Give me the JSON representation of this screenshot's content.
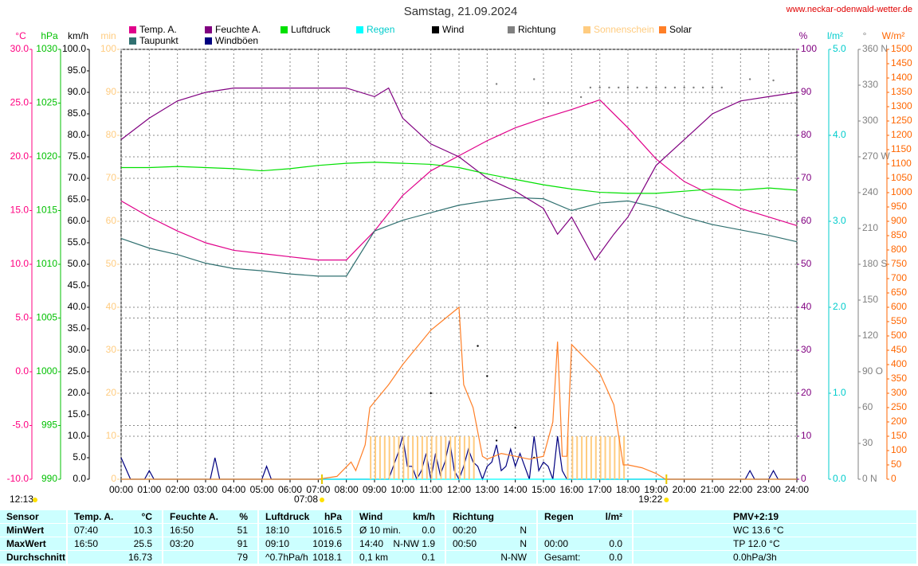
{
  "header": {
    "title": "Samstag, 21.09.2024",
    "url": "www.neckar-odenwald-wetter.de"
  },
  "chart_data": {
    "type": "line",
    "xlim": [
      "00:00",
      "24:00"
    ],
    "xticks": [
      "00:00",
      "01:00",
      "02:00",
      "03:00",
      "04:00",
      "05:00",
      "06:00",
      "07:00",
      "08:00",
      "09:00",
      "10:00",
      "11:00",
      "12:00",
      "13:00",
      "14:00",
      "15:00",
      "16:00",
      "17:00",
      "18:00",
      "19:00",
      "20:00",
      "21:00",
      "22:00",
      "23:00",
      "24:00"
    ],
    "x": [
      "00:00",
      "01:00",
      "02:00",
      "03:00",
      "04:00",
      "05:00",
      "06:00",
      "07:00",
      "08:00",
      "09:00",
      "10:00",
      "11:00",
      "12:00",
      "13:00",
      "14:00",
      "15:00",
      "16:00",
      "17:00",
      "18:00",
      "19:00",
      "20:00",
      "21:00",
      "22:00",
      "23:00",
      "24:00"
    ],
    "xgrid": true,
    "grid": [
      "y1",
      "y5"
    ],
    "axes": {
      "y1": {
        "label": "°C",
        "color": "#ff0080",
        "ylim": [
          -10,
          30
        ],
        "yticks": [
          {
            "value": -10,
            "label": "-10.0"
          },
          {
            "value": -5,
            "label": "-5.0"
          },
          {
            "value": 0,
            "label": "0.0"
          },
          {
            "value": 5,
            "label": "5.0"
          },
          {
            "value": 10,
            "label": "10.0"
          },
          {
            "value": 15,
            "label": "15.0"
          },
          {
            "value": 20,
            "label": "20.0"
          },
          {
            "value": 25,
            "label": "25.0"
          },
          {
            "value": 30,
            "label": "30.0"
          }
        ]
      },
      "y2": {
        "label": "hPa",
        "color": "#00c000",
        "ylim": [
          990,
          1030
        ],
        "yticks": [
          990,
          995,
          1000,
          1005,
          1010,
          1015,
          1020,
          1025,
          1030
        ]
      },
      "y3": {
        "label": "km/h",
        "color": "#000000",
        "ylim": [
          0,
          100
        ],
        "yticks": [
          {
            "value": 0,
            "label": "0.0"
          },
          {
            "value": 5,
            "label": "5.0"
          },
          {
            "value": 10,
            "label": "10.0"
          },
          {
            "value": 15,
            "label": "15.0"
          },
          {
            "value": 20,
            "label": "20.0"
          },
          {
            "value": 25,
            "label": "25.0"
          },
          {
            "value": 30,
            "label": "30.0"
          },
          {
            "value": 35,
            "label": "35.0"
          },
          {
            "value": 40,
            "label": "40.0"
          },
          {
            "value": 45,
            "label": "45.0"
          },
          {
            "value": 50,
            "label": "50.0"
          },
          {
            "value": 55,
            "label": "55.0"
          },
          {
            "value": 60,
            "label": "60.0"
          },
          {
            "value": 65,
            "label": "65.0"
          },
          {
            "value": 70,
            "label": "70.0"
          },
          {
            "value": 75,
            "label": "75.0"
          },
          {
            "value": 80,
            "label": "80.0"
          },
          {
            "value": 85,
            "label": "85.0"
          },
          {
            "value": 90,
            "label": "90.0"
          },
          {
            "value": 95,
            "label": "95.0"
          },
          {
            "value": 100,
            "label": "100.0"
          }
        ]
      },
      "y4": {
        "label": "min",
        "color": "#ffcc80",
        "ylim": [
          0,
          100
        ],
        "yticks": [
          0,
          10,
          20,
          30,
          40,
          50,
          60,
          70,
          80,
          90,
          100
        ]
      },
      "y5": {
        "label": "%",
        "color": "#800080",
        "ylim": [
          0,
          100
        ],
        "yticks": [
          0,
          10,
          20,
          30,
          40,
          50,
          60,
          70,
          80,
          90,
          100
        ]
      },
      "y6": {
        "label": "l/m²",
        "color": "#00cccc",
        "ylim": [
          0,
          5
        ],
        "yticks": [
          {
            "value": 0,
            "label": "0.0"
          },
          {
            "value": 1,
            "label": "1.0"
          },
          {
            "value": 2,
            "label": "2.0"
          },
          {
            "value": 3,
            "label": "3.0"
          },
          {
            "value": 4,
            "label": "4.0"
          },
          {
            "value": 5,
            "label": "5.0"
          }
        ]
      },
      "y7": {
        "label": "°",
        "color": "#808080",
        "ylim": [
          0,
          360
        ],
        "yticks": [
          {
            "value": 0,
            "label": "0 N"
          },
          30,
          60,
          {
            "value": 90,
            "label": "90 O"
          },
          120,
          150,
          {
            "value": 180,
            "label": "180 S"
          },
          210,
          240,
          {
            "value": 270,
            "label": "270 W"
          },
          300,
          330,
          {
            "value": 360,
            "label": "360 N"
          }
        ]
      },
      "y8": {
        "label": "W/m²",
        "color": "#ff6600",
        "ylim": [
          0,
          1500
        ],
        "yticks": [
          0,
          50,
          100,
          150,
          200,
          250,
          300,
          350,
          400,
          450,
          500,
          550,
          600,
          650,
          700,
          750,
          800,
          850,
          900,
          950,
          1000,
          1050,
          1100,
          1150,
          1200,
          1250,
          1300,
          1350,
          1400,
          1450,
          1500
        ]
      }
    },
    "series": [
      {
        "name": "Temp. A.",
        "color": "#e0008a",
        "axis": "y1",
        "style": "line",
        "values": [
          15.9,
          14.4,
          13.1,
          12.0,
          11.3,
          11.0,
          10.7,
          10.4,
          10.4,
          13.1,
          16.4,
          18.7,
          20.1,
          21.5,
          22.7,
          23.6,
          24.4,
          25.3,
          22.7,
          19.8,
          17.7,
          16.4,
          15.2,
          14.4,
          13.6
        ]
      },
      {
        "name": "Taupunkt",
        "color": "#307070",
        "axis": "y1",
        "style": "line",
        "values": [
          12.4,
          11.5,
          10.9,
          10.1,
          9.6,
          9.4,
          9.1,
          8.9,
          8.9,
          13.1,
          14.1,
          14.8,
          15.5,
          15.9,
          16.2,
          16.1,
          15.0,
          15.7,
          15.9,
          15.3,
          14.4,
          13.7,
          13.2,
          12.7,
          12.1
        ]
      },
      {
        "name": "Feuchte A.",
        "color": "#800080",
        "axis": "y5",
        "style": "line",
        "x": [
          "00:00",
          "01:00",
          "02:00",
          "03:00",
          "04:00",
          "05:00",
          "06:00",
          "07:00",
          "08:00",
          "09:00",
          "09:30",
          "10:00",
          "11:00",
          "12:00",
          "13:00",
          "14:00",
          "15:00",
          "15:30",
          "16:00",
          "16:50",
          "17:30",
          "18:00",
          "19:00",
          "20:00",
          "21:00",
          "22:00",
          "23:00",
          "24:00"
        ],
        "values": [
          79,
          84,
          88,
          90,
          91,
          91,
          91,
          91,
          91,
          89,
          91,
          84,
          78,
          75,
          70,
          67,
          63,
          57,
          61,
          51,
          57,
          61,
          73,
          79,
          85,
          88,
          89,
          90
        ]
      },
      {
        "name": "Windböen",
        "color": "#000080",
        "axis": "y3",
        "style": "line",
        "x": [
          "00:00",
          "00:20",
          "00:50",
          "01:00",
          "01:10",
          "03:10",
          "03:20",
          "03:30",
          "05:00",
          "05:10",
          "05:20",
          "09:30",
          "09:40",
          "09:50",
          "10:00",
          "10:10",
          "10:20",
          "10:30",
          "10:40",
          "10:50",
          "11:00",
          "11:10",
          "11:20",
          "11:30",
          "11:40",
          "11:50",
          "12:00",
          "12:10",
          "12:20",
          "12:30",
          "12:40",
          "12:50",
          "13:00",
          "13:10",
          "13:20",
          "13:30",
          "13:40",
          "13:50",
          "14:00",
          "14:10",
          "14:20",
          "14:30",
          "14:40",
          "14:50",
          "15:00",
          "15:10",
          "15:20",
          "15:30",
          "15:40",
          "15:50",
          "22:10",
          "22:20",
          "22:30",
          "23:00",
          "23:10",
          "23:20",
          "24:00"
        ],
        "values": [
          5,
          0,
          0,
          2,
          0,
          0,
          5,
          0,
          0,
          3,
          0,
          0,
          3,
          6,
          10,
          3,
          3,
          0,
          2,
          6,
          0,
          6,
          1,
          4,
          9,
          2,
          0,
          3,
          7,
          4,
          3,
          0,
          3,
          4,
          8,
          2,
          3,
          7,
          3,
          6,
          3,
          0,
          10,
          2,
          4,
          3,
          0,
          10,
          2,
          0,
          0,
          2,
          0,
          0,
          2,
          0,
          0
        ]
      },
      {
        "name": "Luftdruck",
        "color": "#00e000",
        "axis": "y2",
        "style": "line",
        "values": [
          1019.0,
          1019.0,
          1019.1,
          1019.0,
          1018.9,
          1018.7,
          1018.9,
          1019.2,
          1019.4,
          1019.5,
          1019.4,
          1019.3,
          1019.0,
          1018.4,
          1017.9,
          1017.4,
          1017.0,
          1016.7,
          1016.6,
          1016.6,
          1016.8,
          1017.0,
          1016.9,
          1017.1,
          1016.9
        ]
      },
      {
        "name": "Regen",
        "color": "#00ffff",
        "axis": "y6",
        "style": "line",
        "x": [
          "00:00",
          "24:00"
        ],
        "values": [
          0,
          0
        ]
      },
      {
        "name": "Wind",
        "color": "#000000",
        "axis": "y3",
        "style": "dots",
        "x": [
          "11:00",
          "12:40",
          "13:00",
          "13:20",
          "14:00",
          "14:40"
        ],
        "values": [
          20,
          31,
          24,
          9,
          12,
          5
        ]
      },
      {
        "name": "Richtung",
        "color": "#808080",
        "axis": "y7",
        "style": "dots",
        "x": [
          "13:20",
          "14:40",
          "15:10",
          "16:20",
          "16:40",
          "17:00",
          "17:20",
          "17:40",
          "18:00",
          "18:20",
          "18:40",
          "19:00",
          "19:20",
          "19:40",
          "20:00",
          "20:20",
          "20:40",
          "21:00",
          "21:20",
          "22:20",
          "23:10"
        ],
        "values": [
          331,
          335,
          315,
          320,
          328,
          328,
          328,
          328,
          328,
          328,
          328,
          328,
          328,
          328,
          328,
          328,
          328,
          328,
          328,
          335,
          334
        ]
      },
      {
        "name": "Sonnenschein",
        "color": "#ffcc80",
        "axis": "y4",
        "style": "bars",
        "x": [
          "08:50",
          "09:00",
          "09:10",
          "09:20",
          "09:30",
          "09:40",
          "09:50",
          "10:00",
          "10:10",
          "10:20",
          "10:30",
          "10:40",
          "10:50",
          "11:00",
          "11:10",
          "11:20",
          "11:30",
          "11:40",
          "11:50",
          "12:00",
          "12:10",
          "12:20",
          "12:30",
          "15:50",
          "16:00",
          "16:10",
          "16:20",
          "16:30",
          "16:40",
          "16:50",
          "17:00",
          "17:10",
          "17:20",
          "17:30",
          "17:40",
          "17:50"
        ],
        "values": [
          10,
          10,
          10,
          10,
          10,
          10,
          10,
          10,
          10,
          10,
          10,
          10,
          10,
          10,
          10,
          10,
          10,
          10,
          10,
          10,
          10,
          10,
          10,
          10,
          10,
          10,
          10,
          10,
          10,
          10,
          10,
          10,
          10,
          10,
          10,
          10
        ]
      },
      {
        "name": "Solar",
        "color": "#ff7f27",
        "axis": "y8",
        "style": "line",
        "x": [
          "00:00",
          "07:00",
          "07:40",
          "08:10",
          "08:20",
          "08:40",
          "08:50",
          "09:00",
          "09:30",
          "10:00",
          "10:30",
          "11:00",
          "11:30",
          "12:00",
          "12:10",
          "12:30",
          "12:50",
          "13:00",
          "13:30",
          "14:00",
          "14:30",
          "15:00",
          "15:20",
          "15:30",
          "15:40",
          "15:50",
          "16:00",
          "16:30",
          "17:00",
          "17:30",
          "17:50",
          "18:00",
          "18:30",
          "19:00",
          "19:20",
          "24:00"
        ],
        "values": [
          0,
          0,
          10,
          60,
          30,
          120,
          250,
          270,
          330,
          400,
          460,
          520,
          560,
          600,
          330,
          250,
          80,
          70,
          90,
          80,
          70,
          80,
          200,
          480,
          80,
          80,
          470,
          420,
          370,
          260,
          50,
          50,
          40,
          20,
          0,
          0
        ]
      }
    ],
    "day_length": "12:13",
    "sun_marks": [
      "07:08",
      "19:22"
    ]
  },
  "table": {
    "header": [
      [
        "Sensor"
      ],
      [
        "Temp. A.",
        "°C"
      ],
      [
        "Feuchte A.",
        "%"
      ],
      [
        "Luftdruck",
        "hPa"
      ],
      [
        "Wind",
        "km/h"
      ],
      [
        "Richtung"
      ],
      [
        "Regen",
        "l/m²"
      ],
      [
        "PMV+2:19"
      ]
    ],
    "rows": [
      [
        [
          "MinWert"
        ],
        [
          "07:40",
          "10.3"
        ],
        [
          "16:50",
          "51"
        ],
        [
          "18:10",
          "1016.5"
        ],
        [
          "Ø 10 min.",
          "0.0"
        ],
        [
          "00:20",
          "N"
        ],
        [],
        [
          "WC 13.6 °C"
        ]
      ],
      [
        [
          "MaxWert"
        ],
        [
          "16:50",
          "25.5"
        ],
        [
          "03:20",
          "91"
        ],
        [
          "09:10",
          "1019.6"
        ],
        [
          "14:40",
          "N-NW 1.9"
        ],
        [
          "00:50",
          "N"
        ],
        [
          "00:00",
          "0.0"
        ],
        [
          "TP 12.0 °C"
        ]
      ],
      [
        [
          "Durchschnitt"
        ],
        [
          "16.73"
        ],
        [
          "79"
        ],
        [
          "^0.7hPa/h",
          "1018.1"
        ],
        [
          "0,1 km",
          "0.1"
        ],
        [
          "N-NW"
        ],
        [
          "Gesamt:",
          "0.0"
        ],
        [
          "0.0hPa/3h"
        ]
      ]
    ]
  }
}
